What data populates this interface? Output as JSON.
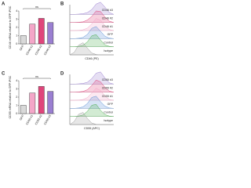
{
  "chart_data": [
    {
      "type": "bar",
      "panel": "A",
      "ylabel": "CD46 mRNA relative to GFP iPSC",
      "annotation": "ns",
      "categories": [
        "GFP",
        "CD46 #1",
        "CD46 #2",
        "CD46 #3"
      ],
      "values": [
        1,
        2.4,
        3.1,
        2.6
      ],
      "colors": [
        "#d9d9d9",
        "#f4a6c8",
        "#e0457b",
        "#9a7fd1"
      ],
      "ylim": [
        0,
        4
      ],
      "yticks": [
        0,
        1,
        2,
        3,
        4
      ]
    },
    {
      "type": "ridgeline",
      "panel": "B",
      "xlabel": "CD46 (PE)",
      "x": [
        0,
        1,
        2,
        3,
        4,
        5,
        6,
        7,
        8,
        9,
        10
      ],
      "ylim": [
        0,
        1
      ],
      "series": [
        {
          "name": "CD46 #3",
          "color": "#9a7fd1",
          "values": [
            0,
            0,
            0.02,
            0.05,
            0.15,
            0.4,
            0.85,
            1,
            0.6,
            0.15,
            0
          ]
        },
        {
          "name": "CD46 #2",
          "color": "#e0457b",
          "values": [
            0,
            0,
            0.02,
            0.05,
            0.2,
            0.5,
            0.95,
            0.9,
            0.45,
            0.1,
            0
          ]
        },
        {
          "name": "CD46 #1",
          "color": "#f4a6c8",
          "values": [
            0,
            0,
            0.02,
            0.06,
            0.2,
            0.55,
            1,
            0.85,
            0.4,
            0.08,
            0
          ]
        },
        {
          "name": "GFP",
          "color": "#5b8fd6",
          "values": [
            0,
            0,
            0.03,
            0.1,
            0.35,
            0.85,
            1,
            0.6,
            0.2,
            0.04,
            0
          ]
        },
        {
          "name": "Control",
          "color": "#4caf50",
          "values": [
            0,
            0,
            0.03,
            0.12,
            0.4,
            0.9,
            1,
            0.55,
            0.15,
            0.03,
            0
          ]
        },
        {
          "name": "Isotype",
          "color": "#9e9e9e",
          "values": [
            0,
            0.2,
            0.8,
            1,
            0.55,
            0.15,
            0.03,
            0,
            0,
            0,
            0
          ]
        }
      ]
    },
    {
      "type": "bar",
      "panel": "C",
      "ylabel": "CD55 mRNA relative to GFP iPSC",
      "annotation": "ns",
      "categories": [
        "GFP",
        "CD55 #1",
        "CD55 #2",
        "CD55 #3"
      ],
      "values": [
        1,
        2.5,
        3.3,
        2.7
      ],
      "colors": [
        "#d9d9d9",
        "#f4a6c8",
        "#e0457b",
        "#9a7fd1"
      ],
      "ylim": [
        0,
        4
      ],
      "yticks": [
        0,
        1,
        2,
        3,
        4
      ]
    },
    {
      "type": "ridgeline",
      "panel": "D",
      "xlabel": "CD55 (APC)",
      "x": [
        0,
        1,
        2,
        3,
        4,
        5,
        6,
        7,
        8,
        9,
        10
      ],
      "ylim": [
        0,
        1
      ],
      "series": [
        {
          "name": "CD55 #3",
          "color": "#9a7fd1",
          "values": [
            0,
            0,
            0.02,
            0.05,
            0.15,
            0.45,
            0.9,
            1,
            0.5,
            0.1,
            0
          ]
        },
        {
          "name": "CD55 #2",
          "color": "#e0457b",
          "values": [
            0,
            0,
            0.02,
            0.06,
            0.2,
            0.55,
            1,
            0.85,
            0.4,
            0.08,
            0
          ]
        },
        {
          "name": "CD55 #1",
          "color": "#f4a6c8",
          "values": [
            0,
            0,
            0.02,
            0.06,
            0.22,
            0.6,
            1,
            0.8,
            0.35,
            0.06,
            0
          ]
        },
        {
          "name": "GFP",
          "color": "#5b8fd6",
          "values": [
            0,
            0,
            0.03,
            0.12,
            0.4,
            0.9,
            1,
            0.55,
            0.18,
            0.03,
            0
          ]
        },
        {
          "name": "Control",
          "color": "#4caf50",
          "values": [
            0,
            0,
            0.03,
            0.12,
            0.42,
            0.92,
            1,
            0.5,
            0.15,
            0.03,
            0
          ]
        },
        {
          "name": "Isotype",
          "color": "#9e9e9e",
          "values": [
            0,
            0.25,
            0.85,
            1,
            0.5,
            0.12,
            0.02,
            0,
            0,
            0,
            0
          ]
        }
      ]
    }
  ]
}
